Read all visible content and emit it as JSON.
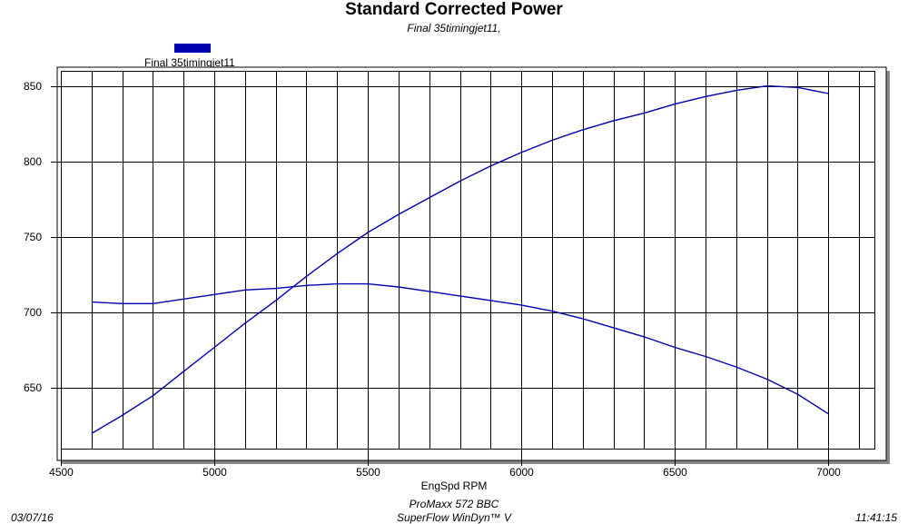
{
  "chart_data": {
    "type": "line",
    "title": "Standard Corrected Power",
    "subtitle": "Final 35timingjet11,",
    "xlabel": "EngSpd RPM",
    "ylabel": "",
    "xlim": [
      4500,
      7150
    ],
    "ylim": [
      610,
      860
    ],
    "x_ticks": [
      4500,
      5000,
      5500,
      6000,
      6500,
      7000
    ],
    "y_ticks": [
      650,
      700,
      750,
      800,
      850
    ],
    "x_grid_step": 100,
    "grid": true,
    "legend": {
      "placement": "top-left",
      "entries": [
        "Final 35timingjet11"
      ]
    },
    "series_color": "#0000B0",
    "series": [
      {
        "name": "Final 35timingjet11",
        "role": "power",
        "x": [
          4600,
          4700,
          4800,
          4900,
          5000,
          5100,
          5200,
          5300,
          5400,
          5500,
          5600,
          5700,
          5800,
          5900,
          6000,
          6100,
          6200,
          6300,
          6400,
          6500,
          6600,
          6700,
          6800,
          6900,
          7000
        ],
        "values": [
          620,
          632,
          645,
          661,
          677,
          693,
          708,
          724,
          739,
          753,
          765,
          776,
          787,
          797,
          806,
          814,
          821,
          827,
          832,
          838,
          843,
          847,
          850,
          849,
          845
        ]
      },
      {
        "name": "",
        "role": "torque",
        "x": [
          4600,
          4700,
          4800,
          4900,
          5000,
          5100,
          5200,
          5300,
          5400,
          5500,
          5600,
          5700,
          5800,
          5900,
          6000,
          6100,
          6200,
          6300,
          6400,
          6500,
          6600,
          6700,
          6800,
          6900,
          7000
        ],
        "values": [
          707,
          706,
          706,
          709,
          712,
          715,
          716,
          718,
          719,
          719,
          717,
          714,
          711,
          708,
          705,
          701,
          696,
          690,
          684,
          677,
          671,
          664,
          656,
          646,
          633
        ]
      }
    ]
  },
  "footer": {
    "engine": "ProMaxx 572 BBC",
    "software": "SuperFlow WinDyn™ V",
    "date": "03/07/16",
    "time": "11:41:15"
  }
}
